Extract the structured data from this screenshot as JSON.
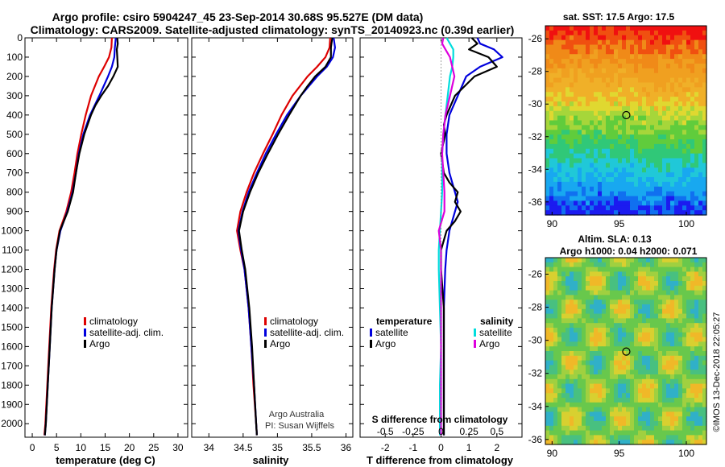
{
  "header": {
    "title_line1": "Argo profile: csiro 5904247_45 23-Sep-2014 30.68S 95.527E (DM data)",
    "title_line2": "Climatology: CARS2009. Satellite-adjusted climatology: synTS_20140923.nc (0.39d earlier)"
  },
  "colors": {
    "climatology": "#dd0000",
    "satellite": "#0000dd",
    "argo": "#000000",
    "s_satellite": "#00dddd",
    "s_argo": "#dd00dd"
  },
  "chart_data": [
    {
      "id": "temperature",
      "type": "line",
      "xlabel": "temperature (deg C)",
      "ylabel": "",
      "xlim": [
        -1.5,
        32
      ],
      "ylim": [
        2070,
        0
      ],
      "xticks": [
        "0",
        "5",
        "10",
        "15",
        "20",
        "25",
        "30"
      ],
      "xtick_values": [
        0,
        5,
        10,
        15,
        20,
        25,
        30
      ],
      "yticks": [
        "0",
        "100",
        "200",
        "300",
        "400",
        "500",
        "600",
        "700",
        "800",
        "900",
        "1000",
        "1100",
        "1200",
        "1300",
        "1400",
        "1500",
        "1600",
        "1700",
        "1800",
        "1900",
        "2000"
      ],
      "ytick_values": [
        0,
        100,
        200,
        300,
        400,
        500,
        600,
        700,
        800,
        900,
        1000,
        1100,
        1200,
        1300,
        1400,
        1500,
        1600,
        1700,
        1800,
        1900,
        2000
      ],
      "legend": {
        "position": "lower-right",
        "entries": [
          "climatology",
          "satellite-adj. clim.",
          "Argo"
        ]
      },
      "series": [
        {
          "name": "climatology",
          "color": "#dd0000",
          "depth": [
            0,
            50,
            100,
            150,
            200,
            300,
            400,
            500,
            600,
            700,
            800,
            900,
            1000,
            1100,
            1200,
            1400,
            1600,
            1800,
            2000,
            2060
          ],
          "values": [
            16.4,
            16.3,
            15.8,
            14.8,
            13.7,
            12.1,
            11.0,
            10.1,
            9.3,
            8.7,
            8.0,
            7.0,
            5.6,
            4.9,
            4.5,
            3.9,
            3.5,
            3.1,
            2.7,
            2.5
          ]
        },
        {
          "name": "satellite-adj. clim.",
          "color": "#0000dd",
          "depth": [
            0,
            50,
            100,
            150,
            200,
            300,
            400,
            500,
            600,
            700,
            800,
            900,
            1000,
            1100,
            1200,
            1400,
            1600,
            1800,
            2000,
            2060
          ],
          "values": [
            17.2,
            17.0,
            16.9,
            16.4,
            15.6,
            13.8,
            11.9,
            10.5,
            9.6,
            9.0,
            8.3,
            7.2,
            5.8,
            5.0,
            4.6,
            4.0,
            3.6,
            3.2,
            2.8,
            2.6
          ]
        },
        {
          "name": "Argo",
          "color": "#000000",
          "depth": [
            0,
            30,
            60,
            100,
            150,
            200,
            250,
            300,
            350,
            400,
            500,
            600,
            700,
            800,
            900,
            1000,
            1100,
            1200,
            1400,
            1600,
            1800,
            2000,
            2060
          ],
          "values": [
            17.5,
            17.6,
            17.4,
            17.5,
            17.6,
            16.7,
            15.6,
            14.2,
            13.0,
            12.1,
            10.7,
            9.7,
            9.0,
            8.4,
            7.3,
            5.7,
            5.0,
            4.6,
            4.0,
            3.6,
            3.2,
            2.8,
            2.6
          ]
        }
      ]
    },
    {
      "id": "salinity",
      "type": "line",
      "xlabel": "salinity",
      "xlim": [
        33.75,
        36.1
      ],
      "ylim": [
        2070,
        0
      ],
      "xticks": [
        "34",
        "34.5",
        "35",
        "35.5",
        "36"
      ],
      "xtick_values": [
        34,
        34.5,
        35,
        35.5,
        36
      ],
      "legend": {
        "position": "lower-right",
        "entries": [
          "climatology",
          "satellite-adj. clim.",
          "Argo"
        ]
      },
      "annotation": {
        "line1": "Argo Australia",
        "line2": "PI: Susan Wijffels"
      },
      "series": [
        {
          "name": "climatology",
          "color": "#dd0000",
          "depth": [
            0,
            50,
            100,
            150,
            200,
            300,
            400,
            500,
            600,
            700,
            800,
            900,
            1000,
            1100,
            1200,
            1400,
            1600,
            1800,
            2000,
            2060
          ],
          "values": [
            35.77,
            35.76,
            35.7,
            35.58,
            35.44,
            35.22,
            35.06,
            34.93,
            34.79,
            34.66,
            34.55,
            34.46,
            34.41,
            34.46,
            34.52,
            34.58,
            34.62,
            34.65,
            34.69,
            34.7
          ]
        },
        {
          "name": "satellite-adj. clim.",
          "color": "#0000dd",
          "depth": [
            0,
            50,
            100,
            150,
            200,
            300,
            400,
            500,
            600,
            700,
            800,
            900,
            1000,
            1100,
            1200,
            1400,
            1600,
            1800,
            2000,
            2060
          ],
          "values": [
            35.82,
            35.84,
            35.81,
            35.72,
            35.58,
            35.34,
            35.14,
            34.98,
            34.83,
            34.7,
            34.58,
            34.49,
            34.43,
            34.47,
            34.52,
            34.58,
            34.62,
            34.66,
            34.69,
            34.7
          ]
        },
        {
          "name": "Argo",
          "color": "#000000",
          "depth": [
            0,
            50,
            100,
            150,
            200,
            250,
            300,
            400,
            500,
            600,
            700,
            800,
            900,
            1000,
            1100,
            1200,
            1400,
            1600,
            1800,
            2000,
            2060
          ],
          "values": [
            35.8,
            35.78,
            35.78,
            35.7,
            35.55,
            35.44,
            35.34,
            35.17,
            35.01,
            34.86,
            34.72,
            34.6,
            34.5,
            34.44,
            34.48,
            34.53,
            34.59,
            34.63,
            34.66,
            34.69,
            34.7
          ]
        }
      ]
    },
    {
      "id": "difference",
      "type": "line",
      "xlabel": "T difference from climatology",
      "xlabel_top": "S difference from climatology",
      "xlim": [
        -2.9,
        2.9
      ],
      "ylim": [
        2070,
        0
      ],
      "xticks": [
        "-2",
        "-1",
        "0",
        "1",
        "2"
      ],
      "xtick_values": [
        -2,
        -1,
        0,
        1,
        2
      ],
      "xticks_top": [
        "-0.5",
        "-0.25",
        "0",
        "0.25",
        "0.5"
      ],
      "legend_temperature": {
        "heading": "temperature",
        "entries": [
          "satellite",
          "Argo"
        ]
      },
      "legend_salinity": {
        "heading": "salinity",
        "entries": [
          "satellite",
          "Argo"
        ]
      },
      "series": [
        {
          "name": "T satellite",
          "color": "#0000dd",
          "depth": [
            0,
            30,
            60,
            100,
            150,
            200,
            300,
            400,
            500,
            600,
            700,
            800,
            850,
            900,
            1000,
            1100,
            1200,
            1400,
            1600,
            1800,
            2000,
            2060
          ],
          "values": [
            1.3,
            1.4,
            1.9,
            2.2,
            1.4,
            0.9,
            0.6,
            0.3,
            0.2,
            0.2,
            0.3,
            0.5,
            0.6,
            0.5,
            0.3,
            0.2,
            0.15,
            0.1,
            0.1,
            0.1,
            0.1,
            0.1
          ]
        },
        {
          "name": "T Argo",
          "color": "#000000",
          "depth": [
            0,
            30,
            60,
            100,
            150,
            200,
            300,
            400,
            450,
            500,
            600,
            700,
            750,
            800,
            850,
            900,
            950,
            1000,
            1100,
            1200,
            1400,
            1600,
            1800,
            2000,
            2060
          ],
          "values": [
            1.1,
            1.3,
            1.0,
            1.7,
            2.0,
            1.2,
            0.5,
            0.2,
            0.1,
            0.15,
            0.0,
            0.1,
            0.3,
            0.6,
            0.5,
            0.7,
            0.5,
            0.2,
            0.0,
            0.0,
            0.1,
            0.1,
            0.1,
            0.1,
            0.1
          ]
        },
        {
          "name": "S satellite",
          "color": "#00dddd",
          "depth": [
            0,
            30,
            60,
            100,
            150,
            200,
            300,
            400,
            500,
            600,
            700,
            800,
            900,
            1000,
            1100,
            1200,
            1400,
            1600,
            1800,
            2000,
            2060
          ],
          "values": [
            0.05,
            0.08,
            0.11,
            0.11,
            0.1,
            0.08,
            0.06,
            0.04,
            0.02,
            0.01,
            0.01,
            0.01,
            0.0,
            -0.01,
            -0.02,
            -0.02,
            -0.01,
            0.0,
            -0.01,
            -0.01,
            -0.01
          ]
        },
        {
          "name": "S Argo",
          "color": "#dd00dd",
          "depth": [
            0,
            30,
            60,
            100,
            150,
            200,
            300,
            400,
            500,
            600,
            700,
            800,
            900,
            1000,
            1100,
            1200,
            1400,
            1600,
            1800,
            2000,
            2060
          ],
          "values": [
            0.02,
            0.01,
            0.04,
            0.08,
            0.1,
            0.12,
            0.08,
            0.04,
            0.02,
            0.01,
            0.02,
            0.03,
            0.03,
            -0.02,
            0.0,
            0.0,
            0.0,
            0.0,
            0.0,
            0.0,
            0.0
          ]
        }
      ]
    },
    {
      "id": "sst_map",
      "type": "heatmap",
      "title": "sat. SST: 17.5  Argo: 17.5",
      "xlim": [
        89.5,
        101.5
      ],
      "ylim": [
        -36.8,
        -25.2
      ],
      "xticks": [
        "90",
        "95",
        "100"
      ],
      "xtick_values": [
        90,
        95,
        100
      ],
      "yticks": [
        "-26",
        "-28",
        "-30",
        "-32",
        "-34",
        "-36"
      ],
      "ytick_values": [
        -26,
        -28,
        -30,
        -32,
        -34,
        -36
      ],
      "marker": {
        "lon": 95.527,
        "lat": -30.68
      }
    },
    {
      "id": "sla_map",
      "type": "heatmap",
      "title": "Altim. SLA: 0.13",
      "subtitle": "Argo h1000: 0.04 h2000: 0.071",
      "xlim": [
        89.5,
        101.5
      ],
      "ylim": [
        -36.3,
        -25.0
      ],
      "xticks": [
        "90",
        "95",
        "100"
      ],
      "xtick_values": [
        90,
        95,
        100
      ],
      "yticks": [
        "-26",
        "-28",
        "-30",
        "-32",
        "-34",
        "-36"
      ],
      "ytick_values": [
        -26,
        -28,
        -30,
        -32,
        -34,
        -36
      ],
      "marker": {
        "lon": 95.527,
        "lat": -30.68
      }
    }
  ],
  "footer": {
    "credit": "©IMOS 13-Dec-2018 22:05:27"
  }
}
